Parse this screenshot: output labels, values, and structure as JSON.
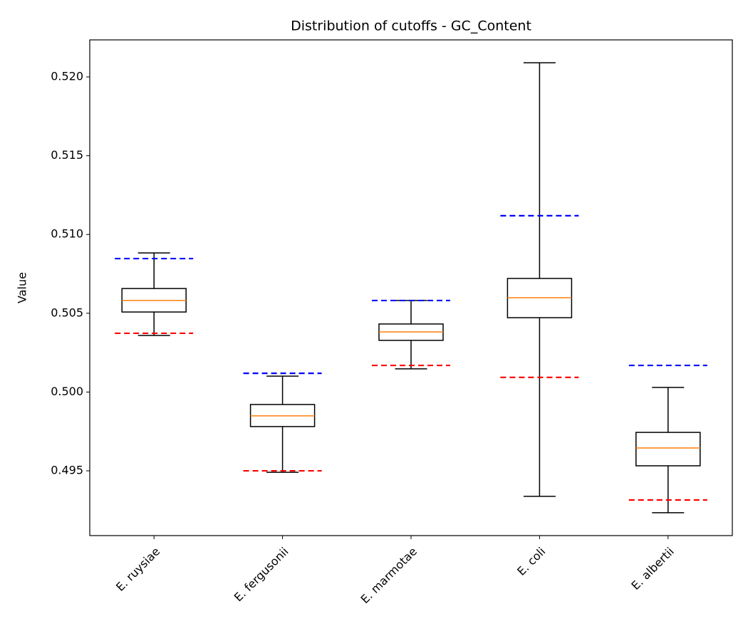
{
  "chart_data": {
    "type": "boxplot",
    "title": "Distribution of cutoffs - GC_Content",
    "ylabel": "Value",
    "categories": [
      "E. ruysiae",
      "E. fergusonii",
      "E. marmotae",
      "E. coli",
      "E. albertii"
    ],
    "boxes": [
      {
        "whislo": 0.50359,
        "q1": 0.50508,
        "med": 0.50581,
        "q3": 0.50657,
        "whishi": 0.50883
      },
      {
        "whislo": 0.49491,
        "q1": 0.49781,
        "med": 0.49849,
        "q3": 0.49921,
        "whishi": 0.50101
      },
      {
        "whislo": 0.50147,
        "q1": 0.50328,
        "med": 0.50382,
        "q3": 0.50432,
        "whishi": 0.50581
      },
      {
        "whislo": 0.49338,
        "q1": 0.50472,
        "med": 0.50599,
        "q3": 0.50721,
        "whishi": 0.5209
      },
      {
        "whislo": 0.49234,
        "q1": 0.49532,
        "med": 0.49645,
        "q3": 0.49744,
        "whishi": 0.50029
      }
    ],
    "box_color": "#000000",
    "median_color": "#ff7f0e",
    "upper_cutoffs": {
      "color": "#0000ff",
      "values": [
        0.50847,
        0.50119,
        0.50581,
        0.51119,
        0.50169
      ]
    },
    "lower_cutoffs": {
      "color": "#ff0000",
      "values": [
        0.50373,
        0.495,
        0.50169,
        0.50093,
        0.49315
      ]
    },
    "ylim": [
      0.49089,
      0.52235
    ],
    "yticks": [
      0.495,
      {
        "value": 0.5,
        "label": "0.500"
      },
      0.505,
      {
        "value": 0.51,
        "label": "0.510"
      },
      0.515,
      {
        "value": 0.52,
        "label": "0.520"
      }
    ]
  }
}
